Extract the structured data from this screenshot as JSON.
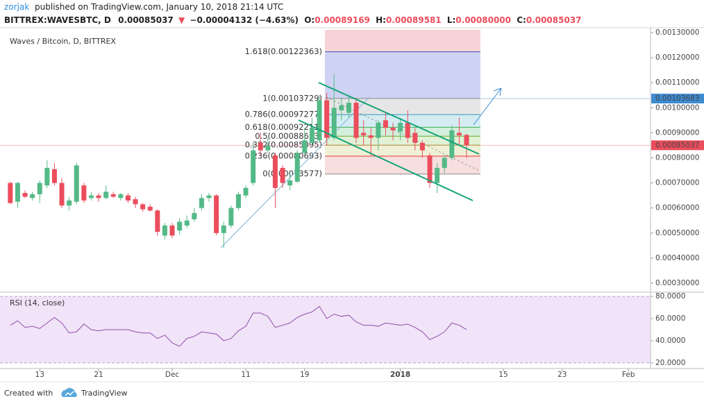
{
  "header": {
    "author": "zorjak",
    "published": "published on TradingView.com, January 10, 2018 21:14 UTC",
    "symbol": "BITTREX:WAVESBTC, D",
    "price": "0.00085037",
    "arrow": "▼",
    "change": "−0.00004132 (−4.63%)",
    "ohlc": [
      {
        "label": "O:",
        "value": "0.00089169"
      },
      {
        "label": "H:",
        "value": "0.00089581"
      },
      {
        "label": "L:",
        "value": "0.00080000"
      },
      {
        "label": "C:",
        "value": "0.00085037"
      }
    ]
  },
  "footer": {
    "created": "Created with",
    "brand": "TradingView"
  },
  "chart_data": [
    {
      "type": "candlestick",
      "title": "Waves / Bitcoin, D, BITTREX",
      "up_color": "#53b987",
      "down_color": "#eb4d5c",
      "x": [
        0,
        1,
        2,
        3,
        4,
        5,
        6,
        7,
        8,
        9,
        10,
        11,
        12,
        13,
        14,
        15,
        16,
        17,
        18,
        19,
        20,
        21,
        22,
        23,
        24,
        25,
        26,
        27,
        28,
        29,
        30,
        31,
        32,
        33,
        34,
        35,
        36,
        37,
        38,
        39,
        40,
        41,
        42,
        43,
        44,
        45,
        46,
        47,
        48,
        49,
        50,
        51,
        52,
        53,
        54,
        55,
        56,
        57,
        58,
        59,
        60,
        61,
        62
      ],
      "open": [
        0.0007,
        0.000625,
        0.00066,
        0.00064,
        0.000655,
        0.00069,
        0.000755,
        0.0007,
        0.00061,
        0.000625,
        0.00069,
        0.00064,
        0.00065,
        0.00064,
        0.000655,
        0.00064,
        0.00065,
        0.000635,
        0.000615,
        0.000605,
        0.00059,
        0.00049,
        0.00053,
        0.00051,
        0.00053,
        0.000555,
        0.0006,
        0.00064,
        0.00065,
        0.0005,
        0.00053,
        0.0006,
        0.00065,
        0.0007,
        0.00086,
        0.00083,
        0.00081,
        0.00076,
        0.00069,
        0.000705,
        0.00082,
        0.00086,
        0.00087,
        0.00103,
        0.00088,
        0.00099,
        0.00098,
        0.00102,
        0.0009,
        0.00089,
        0.00088,
        0.00095,
        0.00092,
        0.000905,
        0.00094,
        0.0009,
        0.00086,
        0.00081,
        0.0007,
        0.00076,
        0.0008,
        0.0009,
        0.00089169
      ],
      "high": [
        0.000705,
        0.000705,
        0.00067,
        0.000665,
        0.00071,
        0.00079,
        0.00078,
        0.00072,
        0.000645,
        0.00078,
        0.0007,
        0.000665,
        0.00066,
        0.00069,
        0.000665,
        0.00066,
        0.00066,
        0.000645,
        0.00062,
        0.000615,
        0.000595,
        0.00054,
        0.00054,
        0.00056,
        0.00057,
        0.0006,
        0.000655,
        0.00066,
        0.000655,
        0.000545,
        0.00061,
        0.000665,
        0.00069,
        0.00086,
        0.0009,
        0.00088,
        0.00082,
        0.00077,
        0.00074,
        0.00083,
        0.00092,
        0.00096,
        0.00105,
        0.00106,
        0.001135,
        0.00104,
        0.00105,
        0.00104,
        0.00095,
        0.00092,
        0.00095,
        0.00098,
        0.00094,
        0.00096,
        0.00099,
        0.00092,
        0.00087,
        0.00082,
        0.00078,
        0.00081,
        0.00093,
        0.00096,
        0.00089581
      ],
      "low": [
        0.000615,
        0.0006,
        0.00064,
        0.00063,
        0.00062,
        0.00068,
        0.00069,
        0.0006,
        0.00059,
        0.000615,
        0.00062,
        0.00063,
        0.000625,
        0.000635,
        0.00064,
        0.00063,
        0.00062,
        0.0006,
        0.000585,
        0.000585,
        0.00049,
        0.000475,
        0.00048,
        0.000495,
        0.00052,
        0.000545,
        0.00059,
        0.000625,
        0.00049,
        0.00044,
        0.00052,
        0.00059,
        0.00064,
        0.00069,
        0.00081,
        0.00082,
        0.0006,
        0.00068,
        0.00067,
        0.0007,
        0.00081,
        0.00085,
        0.00086,
        0.00085,
        0.00087,
        0.00095,
        0.00096,
        0.00086,
        0.00085,
        0.00081,
        0.00083,
        0.00089,
        0.00087,
        0.00087,
        0.00086,
        0.00083,
        0.0008,
        0.00068,
        0.00066,
        0.00074,
        0.00079,
        0.00085,
        0.0008
      ],
      "close": [
        0.00062,
        0.0007,
        0.000645,
        0.000655,
        0.0007,
        0.00076,
        0.0007,
        0.00061,
        0.00063,
        0.00077,
        0.00063,
        0.00065,
        0.00064,
        0.000665,
        0.000645,
        0.000655,
        0.00063,
        0.000615,
        0.000595,
        0.00059,
        0.000505,
        0.00053,
        0.00049,
        0.000545,
        0.00055,
        0.00058,
        0.00064,
        0.00065,
        0.0005,
        0.00053,
        0.0006,
        0.000655,
        0.00068,
        0.00083,
        0.00083,
        0.00085,
        0.00068,
        0.0007,
        0.00071,
        0.00082,
        0.00087,
        0.00092,
        0.00103,
        0.00088,
        0.001,
        0.00101,
        0.00102,
        0.00088,
        0.00089,
        0.00088,
        0.00094,
        0.00092,
        0.00091,
        0.00094,
        0.00088,
        0.00086,
        0.00083,
        0.0007,
        0.00076,
        0.0008,
        0.00091,
        0.00089,
        0.00085037
      ],
      "xlim": [
        -1.4,
        87
      ],
      "xticks": [
        {
          "value": 4,
          "label": "13"
        },
        {
          "value": 12,
          "label": "21"
        },
        {
          "value": 22,
          "label": "Dec"
        },
        {
          "value": 32,
          "label": "11"
        },
        {
          "value": 40,
          "label": "19"
        },
        {
          "value": 53,
          "label": "2018",
          "bold": true
        },
        {
          "value": 67,
          "label": "15"
        },
        {
          "value": 75,
          "label": "23"
        },
        {
          "value": 84,
          "label": "Feb"
        }
      ],
      "ylim": [
        0.000264,
        0.0013194
      ],
      "yticks": [
        {
          "value": 0.0003,
          "label": "0.00030000"
        },
        {
          "value": 0.0004,
          "label": "0.00040000"
        },
        {
          "value": 0.0005,
          "label": "0.00050000"
        },
        {
          "value": 0.0006,
          "label": "0.00060000"
        },
        {
          "value": 0.0007,
          "label": "0.00070000"
        },
        {
          "value": 0.0008,
          "label": "0.00080000"
        },
        {
          "value": 0.0009,
          "label": "0.00090000"
        },
        {
          "value": 0.001,
          "label": "0.00100000"
        },
        {
          "value": 0.0011,
          "label": "0.00110000"
        },
        {
          "value": 0.0012,
          "label": "0.00120000"
        },
        {
          "value": 0.0013,
          "label": "0.00130000"
        }
      ],
      "grid": false,
      "price_markers": [
        {
          "value": 0.00103683,
          "color": "#3d8bd0"
        },
        {
          "value": 0.00085037,
          "color": "#eb4d5c"
        }
      ],
      "fib_top_fill": "#f6d3d6",
      "fib_levels": [
        {
          "label": "1.618(0.00122363)",
          "value": 0.00122363,
          "color": "#3f4fb5",
          "fill": "#cfd3f3"
        },
        {
          "label": "1(0.00103729)",
          "value": 0.00103729,
          "color": "#8a8a8a",
          "fill": "#e6e6e6"
        },
        {
          "label": "0.786(0.00097277)",
          "value": 0.00097277,
          "color": "#2a9ab8",
          "fill": "#d4ecf2"
        },
        {
          "label": "0.618(0.00092211)",
          "value": 0.00092211,
          "color": "#3fae5a",
          "fill": "#d3efdc"
        },
        {
          "label": "0.5(0.00088653)",
          "value": 0.00088653,
          "color": "#6aaa2a",
          "fill": "#e0f1d6"
        },
        {
          "label": "0.382(0.00085095)",
          "value": 0.00085095,
          "color": "#9da62a",
          "fill": "#eff1d6"
        },
        {
          "label": "0.236(0.00080693)",
          "value": 0.00080693,
          "color": "#e53935",
          "fill": "#f7dfdf"
        },
        {
          "label": "0(0.00073577)",
          "value": 0.00073577,
          "color": "#8a8a8a",
          "fill": null
        }
      ]
    },
    {
      "type": "line",
      "title": "RSI (14, close)",
      "color": "#8e4ea6",
      "band": [
        20,
        80
      ],
      "band_color": "#f1e3f8",
      "x": [
        0,
        1,
        2,
        3,
        4,
        5,
        6,
        7,
        8,
        9,
        10,
        11,
        12,
        13,
        14,
        15,
        16,
        17,
        18,
        19,
        20,
        21,
        22,
        23,
        24,
        25,
        26,
        27,
        28,
        29,
        30,
        31,
        32,
        33,
        34,
        35,
        36,
        37,
        38,
        39,
        40,
        41,
        42,
        43,
        44,
        45,
        46,
        47,
        48,
        49,
        50,
        51,
        52,
        53,
        54,
        55,
        56,
        57,
        58,
        59,
        60,
        61,
        62
      ],
      "values": [
        54,
        58,
        52,
        53,
        51,
        56,
        61,
        56,
        47,
        48,
        55,
        50,
        49,
        50,
        50,
        50,
        50,
        48,
        47,
        47,
        42,
        45,
        38,
        35,
        42,
        44,
        48,
        47,
        46,
        40,
        42,
        49,
        53,
        65,
        65,
        62,
        52,
        54,
        56,
        61,
        64,
        66,
        71,
        60,
        64,
        62,
        63,
        57,
        54,
        54,
        53,
        56,
        55,
        54,
        55,
        52,
        48,
        41,
        44,
        48,
        56,
        54,
        50
      ],
      "xlim": [
        -1.4,
        87
      ],
      "ylim": [
        14.9,
        83.8
      ],
      "yticks": [
        {
          "value": 20,
          "label": "20.0000"
        },
        {
          "value": 40,
          "label": "40.0000"
        },
        {
          "value": 60,
          "label": "60.0000"
        },
        {
          "value": 80,
          "label": "80.0000"
        }
      ]
    }
  ]
}
